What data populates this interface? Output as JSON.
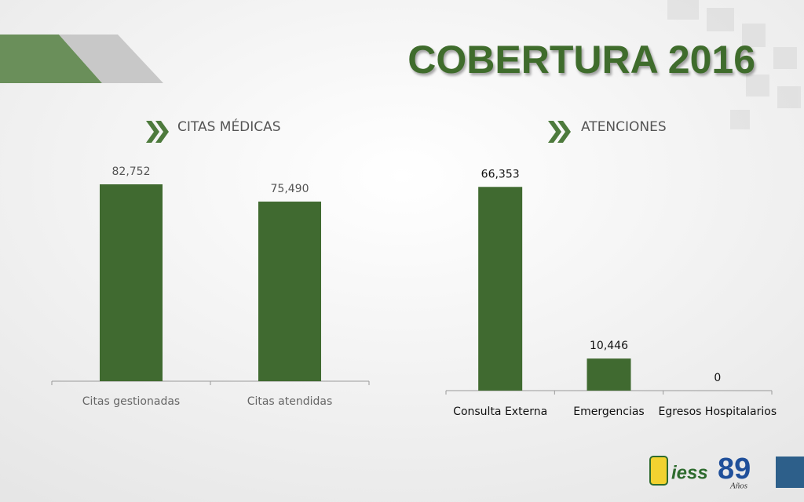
{
  "title": "COBERTURA 2016",
  "logo": {
    "name": "iess",
    "number": "89",
    "caption": "Años"
  },
  "chart_data": [
    {
      "type": "bar",
      "title": "CITAS MÉDICAS",
      "categories": [
        "Citas gestionadas",
        "Citas atendidas"
      ],
      "values": [
        82752,
        75490
      ],
      "value_labels": [
        "82,752",
        "75,490"
      ],
      "color": "#406a30",
      "ylim": [
        0,
        90000
      ]
    },
    {
      "type": "bar",
      "title": "ATENCIONES",
      "categories": [
        "Consulta Externa",
        "Emergencias",
        "Egresos Hospitalarios"
      ],
      "values": [
        66353,
        10446,
        0
      ],
      "value_labels": [
        "66,353",
        "10,446",
        "0"
      ],
      "color": "#406a30",
      "ylim": [
        0,
        70000
      ]
    }
  ]
}
